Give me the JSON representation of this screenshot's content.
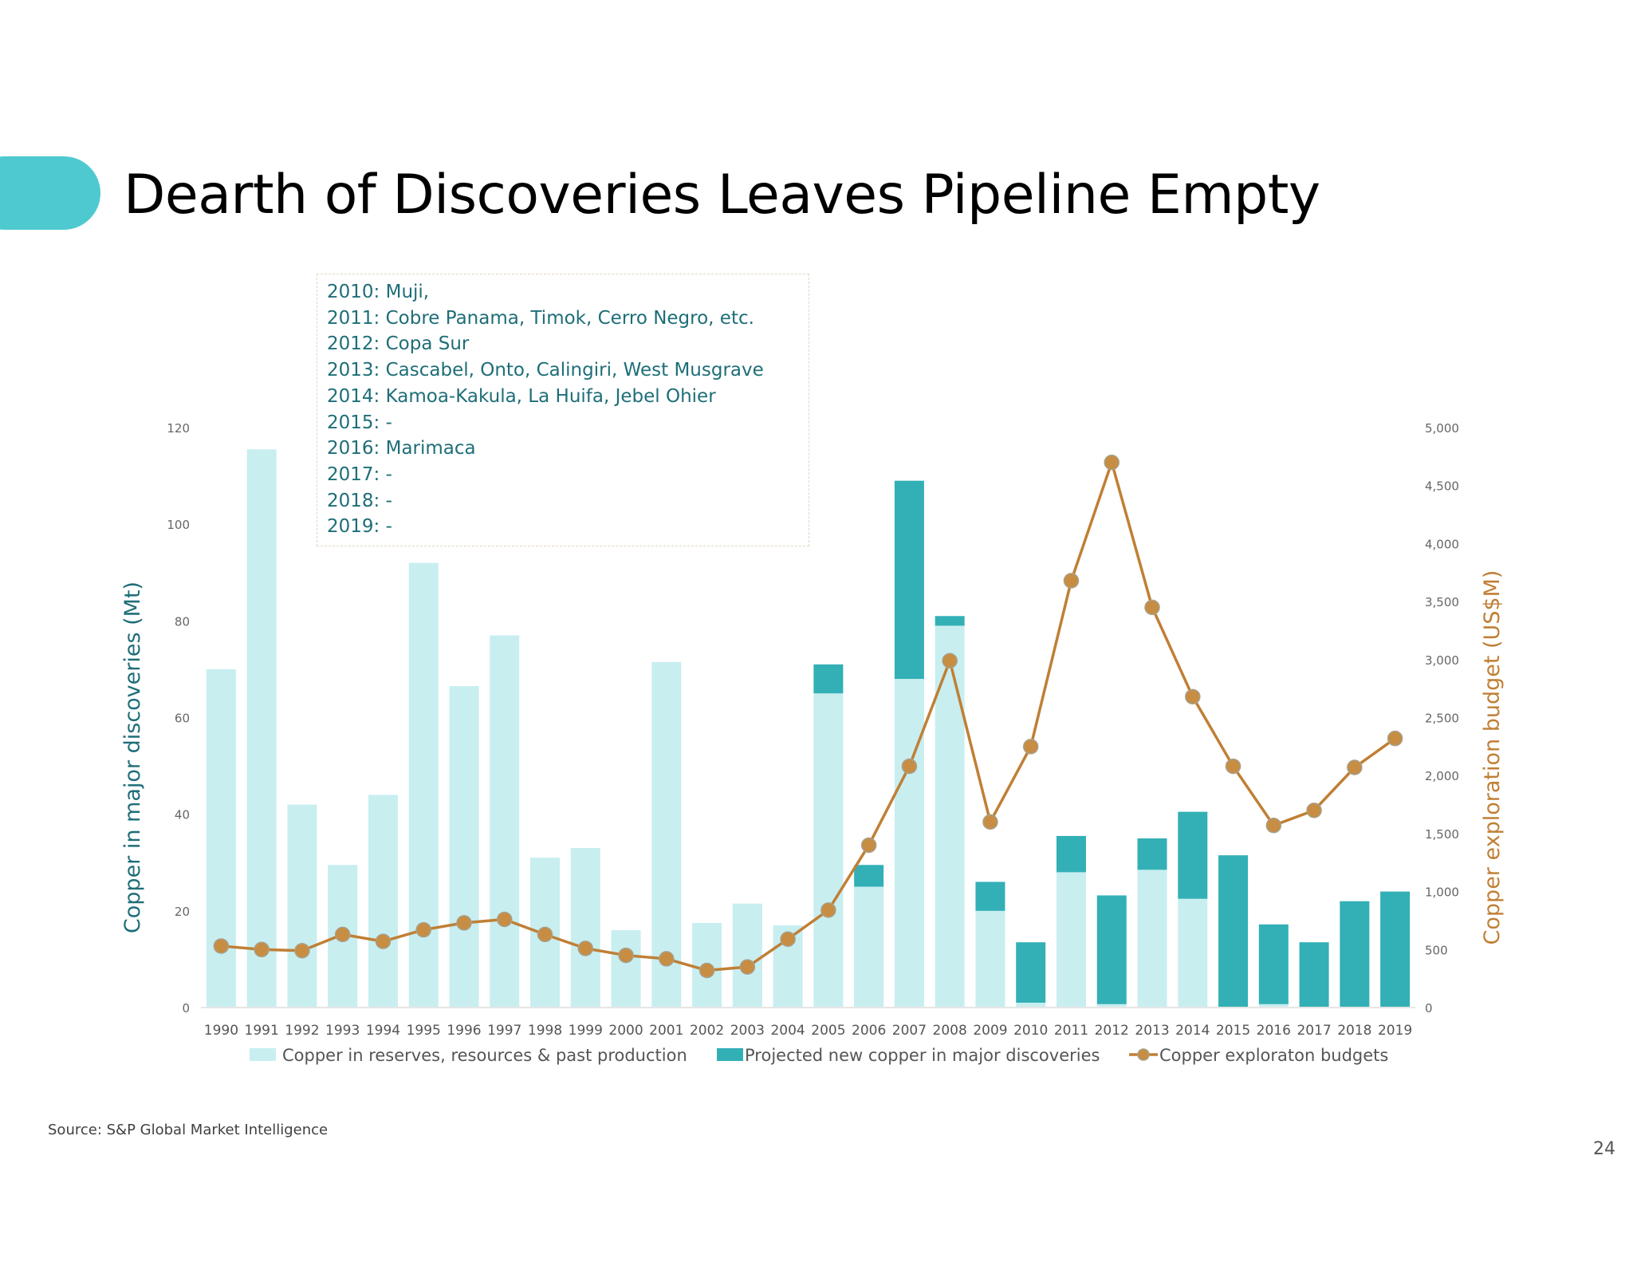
{
  "title": "Dearth of Discoveries Leaves Pipeline Empty",
  "annotation_lines": [
    "2010: Muji,",
    "2011: Cobre Panama, Timok, Cerro Negro, etc.",
    "2012: Copa Sur",
    "2013: Cascabel, Onto, Calingiri, West Musgrave",
    "2014: Kamoa-Kakula, La Huifa, Jebel Ohier",
    "2015: -",
    "2016: Marimaca",
    "2017: -",
    "2018: -",
    "2019: -"
  ],
  "source": "Source: S&P Global Market Intelligence",
  "page_number": "24",
  "colors": {
    "accent": "#4ec9d0",
    "reserves_bar": "#c8eef0",
    "projected_bar": "#32b0b6",
    "budget_line": "#c07f35",
    "budget_marker": "#c78d43",
    "left_axis_title": "#1e6e78",
    "right_axis_title": "#c07f35"
  },
  "chart_data": {
    "type": "bar",
    "categories": [
      "1990",
      "1991",
      "1992",
      "1993",
      "1994",
      "1995",
      "1996",
      "1997",
      "1998",
      "1999",
      "2000",
      "2001",
      "2002",
      "2003",
      "2004",
      "2005",
      "2006",
      "2007",
      "2008",
      "2009",
      "2010",
      "2011",
      "2012",
      "2013",
      "2014",
      "2015",
      "2016",
      "2017",
      "2018",
      "2019"
    ],
    "series": [
      {
        "name": "Copper in reserves, resources & past production",
        "type": "bar",
        "stack": "discoveries",
        "axis": "left",
        "values": [
          70,
          115.5,
          42,
          29.5,
          44,
          92,
          66.5,
          77,
          31,
          33,
          16,
          71.5,
          17.5,
          21.5,
          17,
          65,
          25,
          68,
          79,
          20,
          1,
          28,
          0.7,
          28.5,
          22.5,
          0,
          0.7,
          0,
          0,
          0
        ]
      },
      {
        "name": "Projected new copper in major discoveries",
        "type": "bar",
        "stack": "discoveries",
        "axis": "left",
        "values": [
          0,
          0,
          0,
          0,
          0,
          0,
          0,
          0,
          0,
          0,
          0,
          0,
          0,
          0,
          0,
          6,
          4.5,
          41,
          2,
          6,
          12.5,
          7.5,
          22.5,
          6.5,
          18,
          31.5,
          16.5,
          13.5,
          22,
          24
        ]
      },
      {
        "name": "Copper exploraton budgets",
        "type": "line",
        "axis": "right",
        "values": [
          530,
          500,
          490,
          630,
          570,
          670,
          730,
          760,
          630,
          510,
          450,
          420,
          320,
          350,
          590,
          840,
          1400,
          2080,
          2990,
          1600,
          2250,
          3680,
          4700,
          3450,
          2680,
          2080,
          1570,
          1700,
          2070,
          2320
        ]
      }
    ],
    "y_left": {
      "label": "Copper in major discoveries (Mt)",
      "range": [
        0,
        120
      ],
      "ticks": [
        "0",
        "20",
        "40",
        "60",
        "80",
        "100",
        "120"
      ]
    },
    "y_right": {
      "label": "Copper exploration budget (US$M)",
      "range": [
        0,
        5000
      ],
      "ticks": [
        "0",
        "500",
        "1,000",
        "1,500",
        "2,000",
        "2,500",
        "3,000",
        "3,500",
        "4,000",
        "4,500",
        "5,000"
      ]
    },
    "grid": false,
    "legend": "bottom"
  }
}
